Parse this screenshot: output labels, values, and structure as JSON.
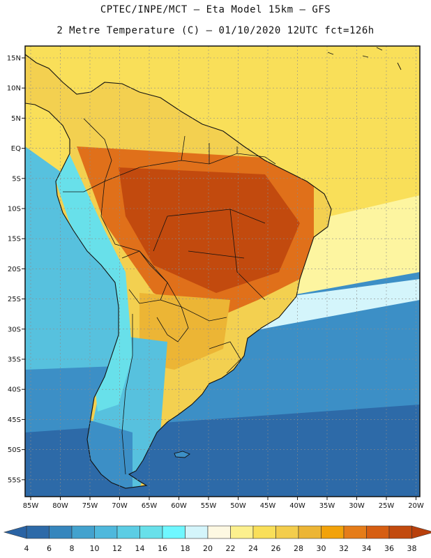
{
  "header": {
    "line1": "CPTEC/INPE/MCT –  Eta Model 15km – GFS",
    "line2": "2 Metre Temperature (C) – 01/10/2020 12UTC fct=126h"
  },
  "map": {
    "lat_labels": [
      "15N",
      "10N",
      "5N",
      "EQ",
      "5S",
      "10S",
      "15S",
      "20S",
      "25S",
      "30S",
      "35S",
      "40S",
      "45S",
      "50S",
      "55S"
    ],
    "lon_labels": [
      "85W",
      "80W",
      "75W",
      "70W",
      "65W",
      "60W",
      "55W",
      "50W",
      "45W",
      "40W",
      "35W",
      "30W",
      "25W",
      "20W"
    ]
  },
  "colorbar": {
    "labels": [
      "4",
      "6",
      "8",
      "10",
      "12",
      "14",
      "16",
      "18",
      "20",
      "22",
      "24",
      "26",
      "28",
      "30",
      "32",
      "34",
      "36",
      "38"
    ],
    "colors": [
      "#2d6aa8",
      "#3686bd",
      "#43a2ce",
      "#4fb8dc",
      "#5ccde4",
      "#68e0ea",
      "#6ff7ff",
      "#d4f5fb",
      "#fdf8e2",
      "#fcf08e",
      "#f9df59",
      "#f3cd4c",
      "#ecb535",
      "#f2a20a",
      "#e57c19",
      "#d65e12",
      "#c24a0e"
    ],
    "under_color": "#2a63a4",
    "over_color": "#b8400c"
  },
  "palette": {
    "ocean_deep": "#2d6aa8",
    "ocean_mid": "#3c8fc6",
    "ocean_light": "#57c1de",
    "ocean_pale": "#d4f5fb",
    "ocean_yellow": "#f9df59",
    "ocean_cream": "#fdf5a0",
    "land_hot": "#c24a0e",
    "land_warm": "#e0701a",
    "land_orange": "#ecb535",
    "land_yellow": "#f3d050",
    "andes_cool": "#68e0ea",
    "border": "#111111",
    "grid": "#8c8c8c"
  }
}
